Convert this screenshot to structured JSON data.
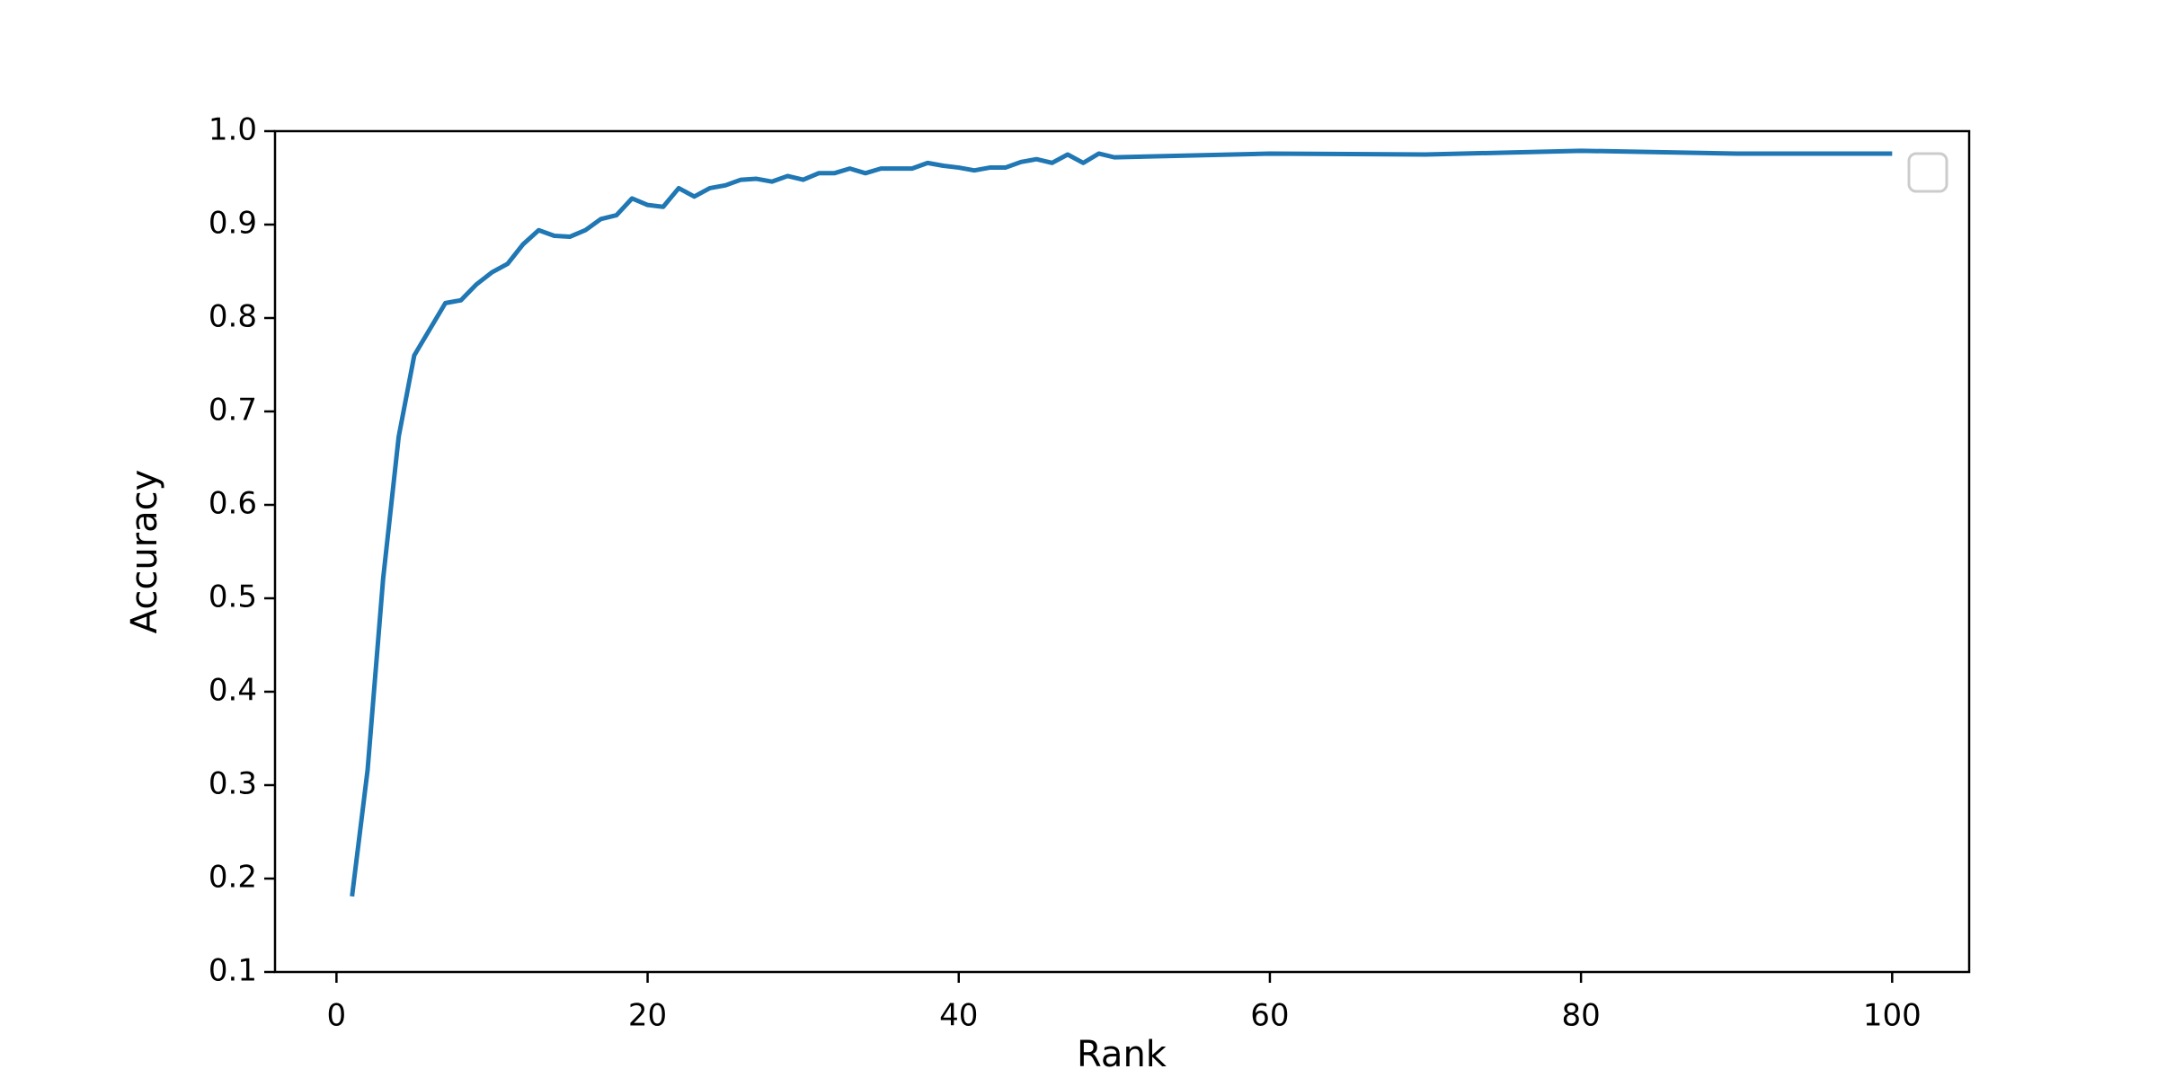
{
  "chart_data": {
    "type": "line",
    "x_label": "Rank",
    "y_label": "Accuracy",
    "x": [
      1,
      2,
      3,
      4,
      5,
      6,
      7,
      8,
      9,
      10,
      11,
      12,
      13,
      14,
      15,
      16,
      17,
      18,
      19,
      20,
      21,
      22,
      23,
      24,
      25,
      26,
      27,
      28,
      29,
      30,
      31,
      32,
      33,
      34,
      35,
      36,
      37,
      38,
      39,
      40,
      41,
      42,
      43,
      44,
      45,
      46,
      47,
      48,
      49,
      50,
      60,
      70,
      80,
      90,
      100
    ],
    "values": [
      0.181,
      0.316,
      0.521,
      0.673,
      0.76,
      0.788,
      0.816,
      0.819,
      0.836,
      0.849,
      0.858,
      0.879,
      0.894,
      0.888,
      0.887,
      0.894,
      0.906,
      0.91,
      0.928,
      0.921,
      0.919,
      0.939,
      0.93,
      0.939,
      0.942,
      0.948,
      0.949,
      0.946,
      0.952,
      0.948,
      0.955,
      0.955,
      0.96,
      0.955,
      0.96,
      0.96,
      0.96,
      0.966,
      0.963,
      0.961,
      0.958,
      0.961,
      0.961,
      0.967,
      0.97,
      0.966,
      0.975,
      0.966,
      0.976,
      0.972,
      0.976,
      0.975,
      0.979,
      0.976,
      0.976
    ],
    "color": "#1f77b4",
    "xlim": [
      -3.95,
      104.95
    ],
    "xticks": [
      0,
      20,
      40,
      60,
      80,
      100
    ],
    "ylim": [
      0.1,
      1.0
    ],
    "yticks": [
      0.1,
      0.2,
      0.3,
      0.4,
      0.5,
      0.6,
      0.7,
      0.8,
      0.9,
      {
        "value": 1.0,
        "label": "1.0"
      }
    ]
  }
}
